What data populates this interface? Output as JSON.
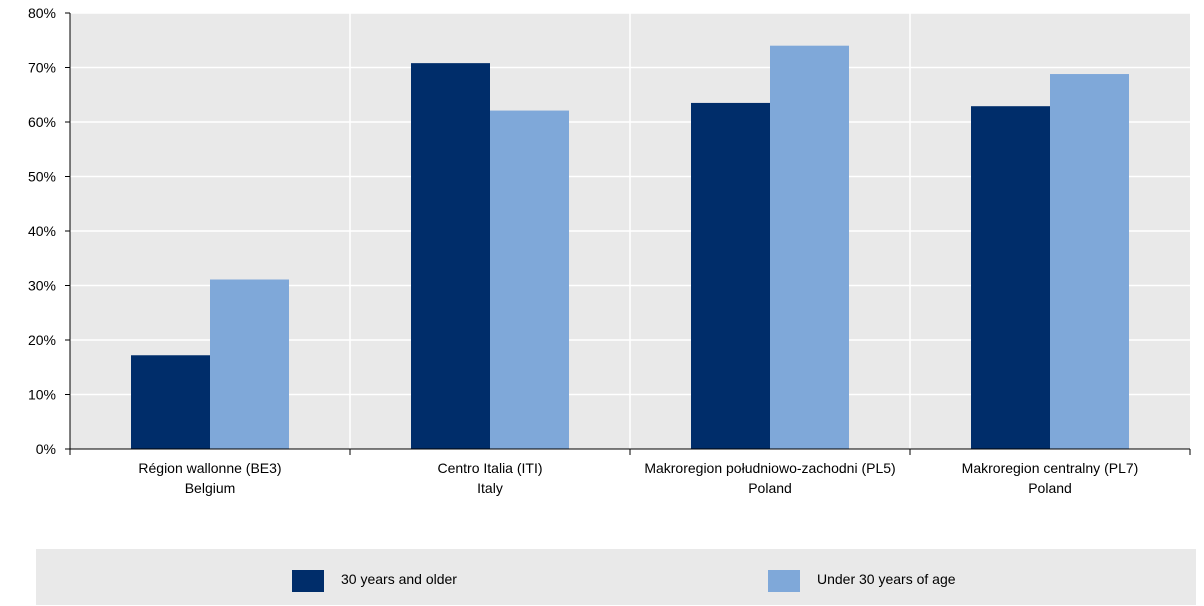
{
  "chart_data": {
    "type": "bar",
    "categories": [
      [
        "Région wallonne (BE3)",
        "Belgium"
      ],
      [
        "Centro Italia (ITI)",
        "Italy"
      ],
      [
        "Makroregion południowo-zachodni (PL5)",
        "Poland"
      ],
      [
        "Makroregion centralny (PL7)",
        "Poland"
      ]
    ],
    "series": [
      {
        "name": "30 years and older",
        "color": "#002d6a",
        "values": [
          17.2,
          70.8,
          63.5,
          62.9
        ]
      },
      {
        "name": "Under 30 years of age",
        "color": "#7fa8d9",
        "values": [
          31.1,
          62.1,
          74.0,
          68.8
        ]
      }
    ],
    "ylim": [
      0,
      80
    ],
    "yticks": [
      0,
      10,
      20,
      30,
      40,
      50,
      60,
      70,
      80
    ],
    "ytick_format": "{v}%",
    "grid": true,
    "legend_position": "bottom"
  }
}
